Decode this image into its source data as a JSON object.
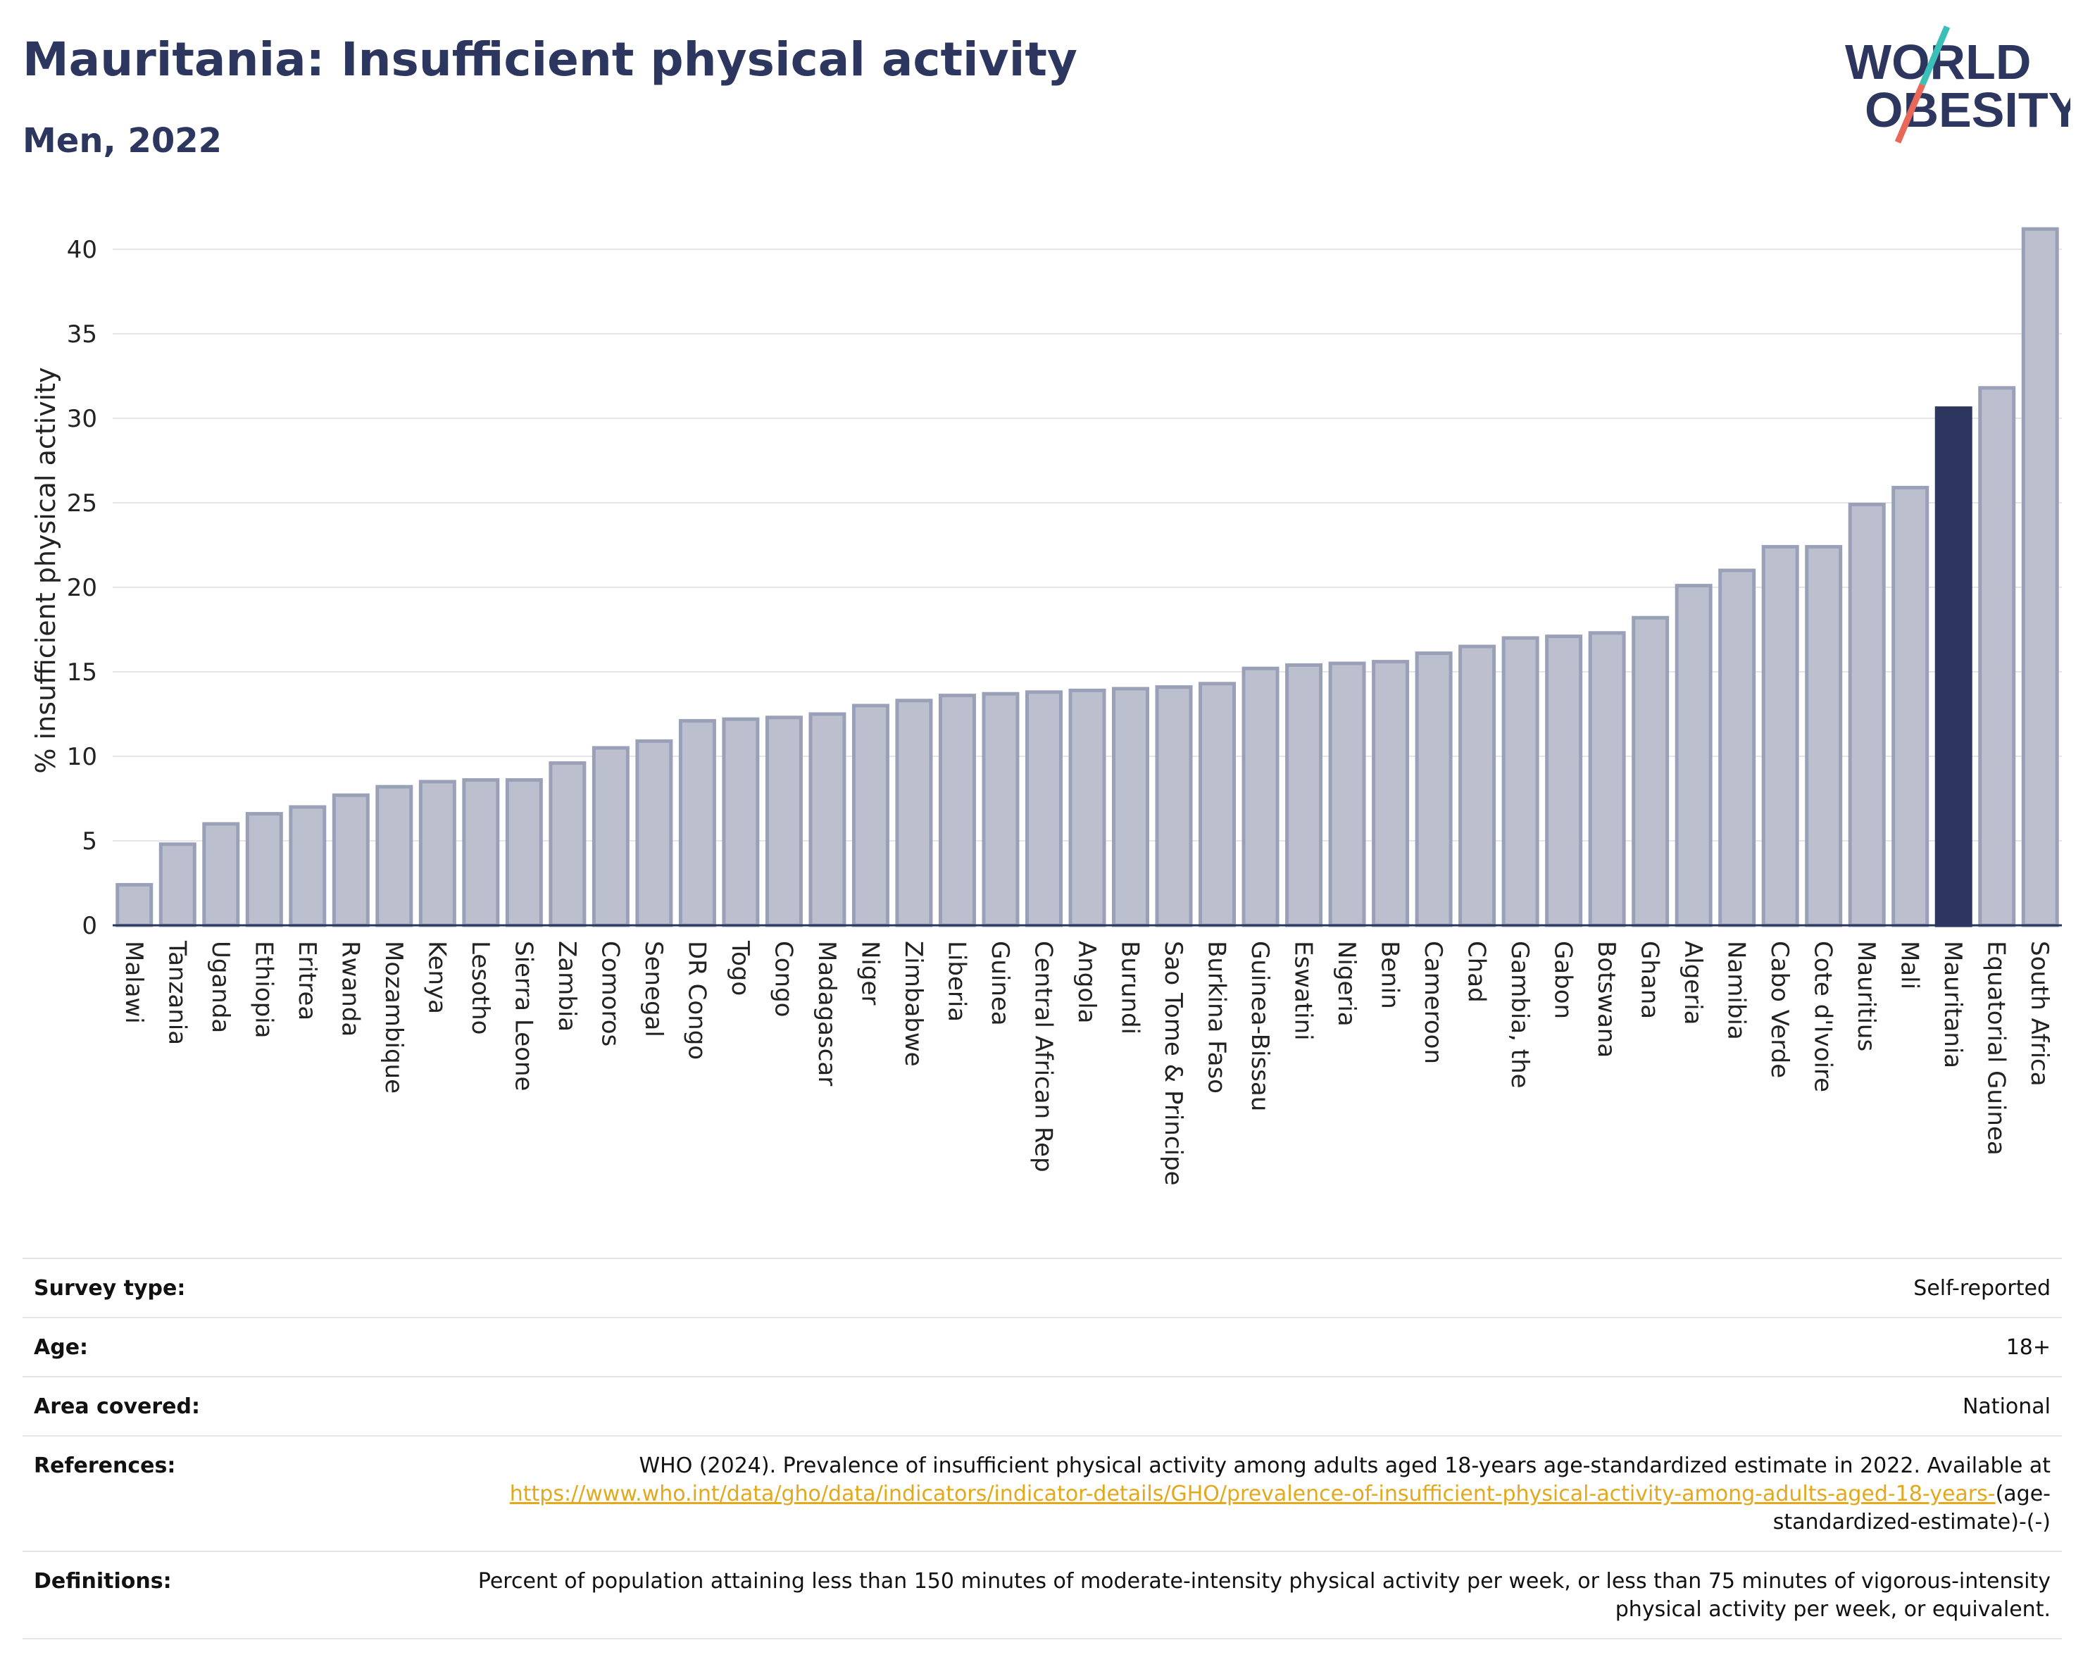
{
  "header": {
    "title": "Mauritania: Insufficient physical activity",
    "subtitle": "Men, 2022"
  },
  "logo": {
    "line1": "WORLD",
    "line2": "OBESITY",
    "colors": {
      "text": "#2c365e",
      "slash_teal": "#3bbfb8",
      "slash_red": "#e8685a"
    }
  },
  "colors": {
    "bar_default": "#bcc0ce",
    "bar_default_border": "#9aa0b8",
    "bar_highlight": "#2c365e",
    "grid": "#e6e6ea",
    "axis": "#2c365e"
  },
  "chart_data": {
    "type": "bar",
    "title": "Mauritania: Insufficient physical activity",
    "subtitle": "Men, 2022",
    "xlabel": "",
    "ylabel": "% insufficient physical activity",
    "ylim": [
      0,
      42
    ],
    "yticks": [
      0,
      5,
      10,
      15,
      20,
      25,
      30,
      35,
      40
    ],
    "grid": true,
    "highlight": "Mauritania",
    "categories": [
      "Malawi",
      "Tanzania",
      "Uganda",
      "Ethiopia",
      "Eritrea",
      "Rwanda",
      "Mozambique",
      "Kenya",
      "Lesotho",
      "Sierra Leone",
      "Zambia",
      "Comoros",
      "Senegal",
      "DR Congo",
      "Togo",
      "Congo",
      "Madagascar",
      "Niger",
      "Zimbabwe",
      "Liberia",
      "Guinea",
      "Central African Rep",
      "Angola",
      "Burundi",
      "Sao Tome & Principe",
      "Burkina Faso",
      "Guinea-Bissau",
      "Eswatini",
      "Nigeria",
      "Benin",
      "Cameroon",
      "Chad",
      "Gambia, the",
      "Gabon",
      "Botswana",
      "Ghana",
      "Algeria",
      "Namibia",
      "Cabo Verde",
      "Cote d'Ivoire",
      "Mauritius",
      "Mali",
      "Mauritania",
      "Equatorial Guinea",
      "South Africa"
    ],
    "values": [
      2.4,
      4.8,
      6.0,
      6.6,
      7.0,
      7.7,
      8.2,
      8.5,
      8.6,
      8.6,
      9.6,
      10.5,
      10.9,
      12.1,
      12.2,
      12.3,
      12.5,
      13.0,
      13.3,
      13.6,
      13.7,
      13.8,
      13.9,
      14.0,
      14.1,
      14.3,
      15.2,
      15.4,
      15.5,
      15.6,
      16.1,
      16.5,
      17.0,
      17.1,
      17.3,
      18.2,
      20.1,
      21.0,
      22.4,
      22.4,
      24.9,
      25.9,
      30.6,
      31.8,
      41.2
    ]
  },
  "info": {
    "survey_type": {
      "label": "Survey type:",
      "value": "Self-reported"
    },
    "age": {
      "label": "Age:",
      "value": "18+"
    },
    "area": {
      "label": "Area covered:",
      "value": "National"
    },
    "references": {
      "label": "References:",
      "text": "WHO (2024). Prevalence of insufficient physical activity among adults aged 18-years age-standardized estimate in 2022. Available at",
      "link": "https://www.who.int/data/gho/data/indicators/indicator-details/GHO/prevalence-of-insufficient-physical-activity-among-adults-aged-18-years-",
      "tail": "(age-standardized-estimate)-(-)"
    },
    "definitions": {
      "label": "Definitions:",
      "value": "Percent of population attaining less than 150 minutes of moderate-intensity physical activity per week, or less than 75 minutes of vigorous-intensity physical activity per week, or equivalent."
    }
  }
}
